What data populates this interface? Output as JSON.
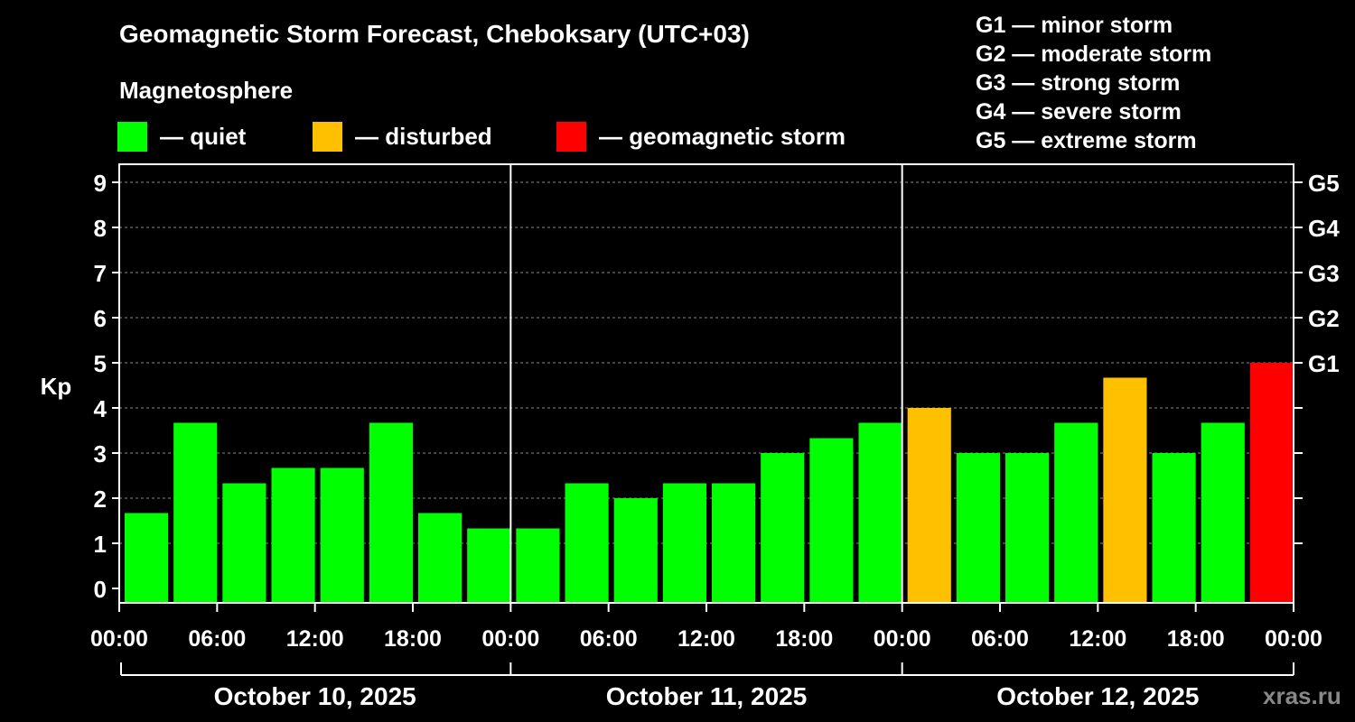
{
  "chart_data": {
    "type": "bar",
    "title": "Geomagnetic Storm Forecast, Cheboksary (UTC+03)",
    "ylabel": "Kp",
    "ylim": [
      0,
      9
    ],
    "y_ticks": [
      "0",
      "1",
      "2",
      "3",
      "4",
      "5",
      "6",
      "7",
      "8",
      "9"
    ],
    "g_scale_ticks": [
      {
        "kp": 5,
        "label": "G1"
      },
      {
        "kp": 6,
        "label": "G2"
      },
      {
        "kp": 7,
        "label": "G3"
      },
      {
        "kp": 8,
        "label": "G4"
      },
      {
        "kp": 9,
        "label": "G5"
      }
    ],
    "x_tick_labels": [
      "00:00",
      "06:00",
      "12:00",
      "18:00",
      "00:00",
      "06:00",
      "12:00",
      "18:00",
      "00:00",
      "06:00",
      "12:00",
      "18:00",
      "00:00"
    ],
    "days": [
      "October 10, 2025",
      "October 11, 2025",
      "October 12, 2025"
    ],
    "interval_hours": 3,
    "values": [
      1.67,
      3.67,
      2.33,
      2.67,
      2.67,
      3.67,
      1.67,
      1.33,
      1.33,
      2.33,
      2.0,
      2.33,
      2.33,
      3.0,
      3.33,
      3.67,
      4.0,
      3.0,
      3.0,
      3.67,
      4.67,
      3.0,
      3.67,
      5.0
    ],
    "status": [
      "quiet",
      "quiet",
      "quiet",
      "quiet",
      "quiet",
      "quiet",
      "quiet",
      "quiet",
      "quiet",
      "quiet",
      "quiet",
      "quiet",
      "quiet",
      "quiet",
      "quiet",
      "quiet",
      "disturbed",
      "quiet",
      "quiet",
      "quiet",
      "disturbed",
      "quiet",
      "quiet",
      "storm"
    ],
    "colors": {
      "quiet": "#00ff00",
      "disturbed": "#ffc000",
      "storm": "#ff0000"
    },
    "grid": true
  },
  "legend": {
    "heading": "Magnetosphere",
    "items": [
      {
        "key": "quiet",
        "label": "— quiet"
      },
      {
        "key": "disturbed",
        "label": "— disturbed"
      },
      {
        "key": "storm",
        "label": "— geomagnetic storm"
      }
    ]
  },
  "scale_legend": [
    "G1 — minor storm",
    "G2 — moderate storm",
    "G3 — strong storm",
    "G4 — severe storm",
    "G5 — extreme storm"
  ],
  "watermark": "xras.ru"
}
